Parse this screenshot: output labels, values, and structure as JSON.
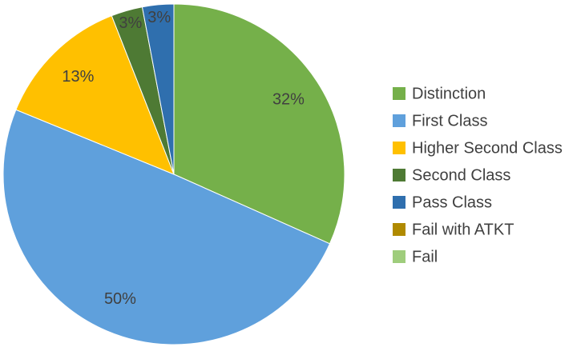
{
  "chart_data": {
    "type": "pie",
    "categories": [
      "Distinction",
      "First Class",
      "Higher Second Class",
      "Second Class",
      "Pass Class",
      "Fail with ATKT",
      "Fail"
    ],
    "values": [
      32,
      50,
      13,
      3,
      3,
      0,
      0
    ],
    "value_labels": [
      "32%",
      "50%",
      "13%",
      "3%",
      "3%",
      null,
      null
    ],
    "colors": [
      "#75b04a",
      "#5fa0dc",
      "#ffc000",
      "#4e7a34",
      "#2f6fae",
      "#b08a00",
      "#9fcd7c"
    ],
    "legend": "right"
  }
}
